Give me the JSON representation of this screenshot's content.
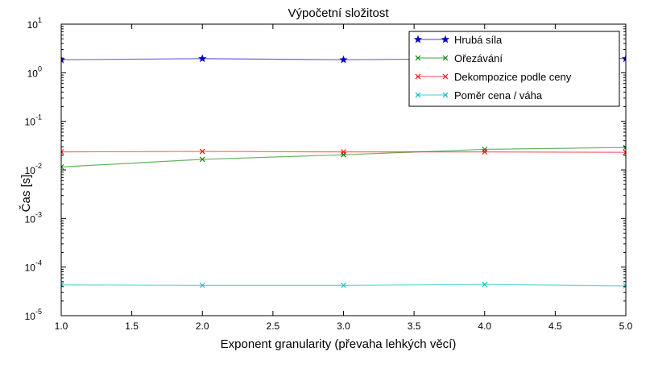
{
  "chart_data": {
    "type": "line",
    "title": "Výpočetní složitost",
    "xlabel": "Exponent granularity (převaha lehkých věcí)",
    "ylabel": "Čas [s]",
    "xlim": [
      1.0,
      5.0
    ],
    "ylim": [
      1e-05,
      10
    ],
    "yscale": "log",
    "grid": false,
    "legend_position": "top-right",
    "x_ticks": [
      "1.0",
      "1.5",
      "2.0",
      "2.5",
      "3.0",
      "3.5",
      "4.0",
      "4.5",
      "5.0"
    ],
    "y_ticks": [
      {
        "base": "10",
        "exp": "1"
      },
      {
        "base": "10",
        "exp": "0"
      },
      {
        "base": "10",
        "exp": "-1"
      },
      {
        "base": "10",
        "exp": "-2"
      },
      {
        "base": "10",
        "exp": "-3"
      },
      {
        "base": "10",
        "exp": "-4"
      },
      {
        "base": "10",
        "exp": "-5"
      }
    ],
    "x": [
      1.0,
      2.0,
      3.0,
      4.0,
      5.0
    ],
    "series": [
      {
        "name": "Hrubá síla",
        "color": "#0000bf",
        "marker": "star",
        "values": [
          1.85,
          1.95,
          1.85,
          1.95,
          1.95
        ]
      },
      {
        "name": "Ořezávání",
        "color": "#008000",
        "marker": "x",
        "values": [
          0.0115,
          0.0165,
          0.0205,
          0.0265,
          0.029
        ]
      },
      {
        "name": "Dekompozice podle ceny",
        "color": "#ff0000",
        "marker": "x",
        "values": [
          0.0235,
          0.024,
          0.0235,
          0.0235,
          0.023
        ]
      },
      {
        "name": "Poměr cena / váha",
        "color": "#00bfbf",
        "marker": "x",
        "values": [
          4.3e-05,
          4.2e-05,
          4.2e-05,
          4.4e-05,
          4.1e-05
        ]
      }
    ]
  }
}
